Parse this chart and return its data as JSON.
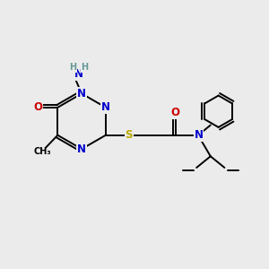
{
  "bg_color": "#ebebeb",
  "atom_colors": {
    "C": "#000000",
    "N": "#0000cc",
    "O": "#cc0000",
    "S": "#bbaa00",
    "H": "#669999"
  },
  "bond_color": "#000000",
  "font_size": 8.5,
  "fig_size": [
    3.0,
    3.0
  ],
  "dpi": 100
}
